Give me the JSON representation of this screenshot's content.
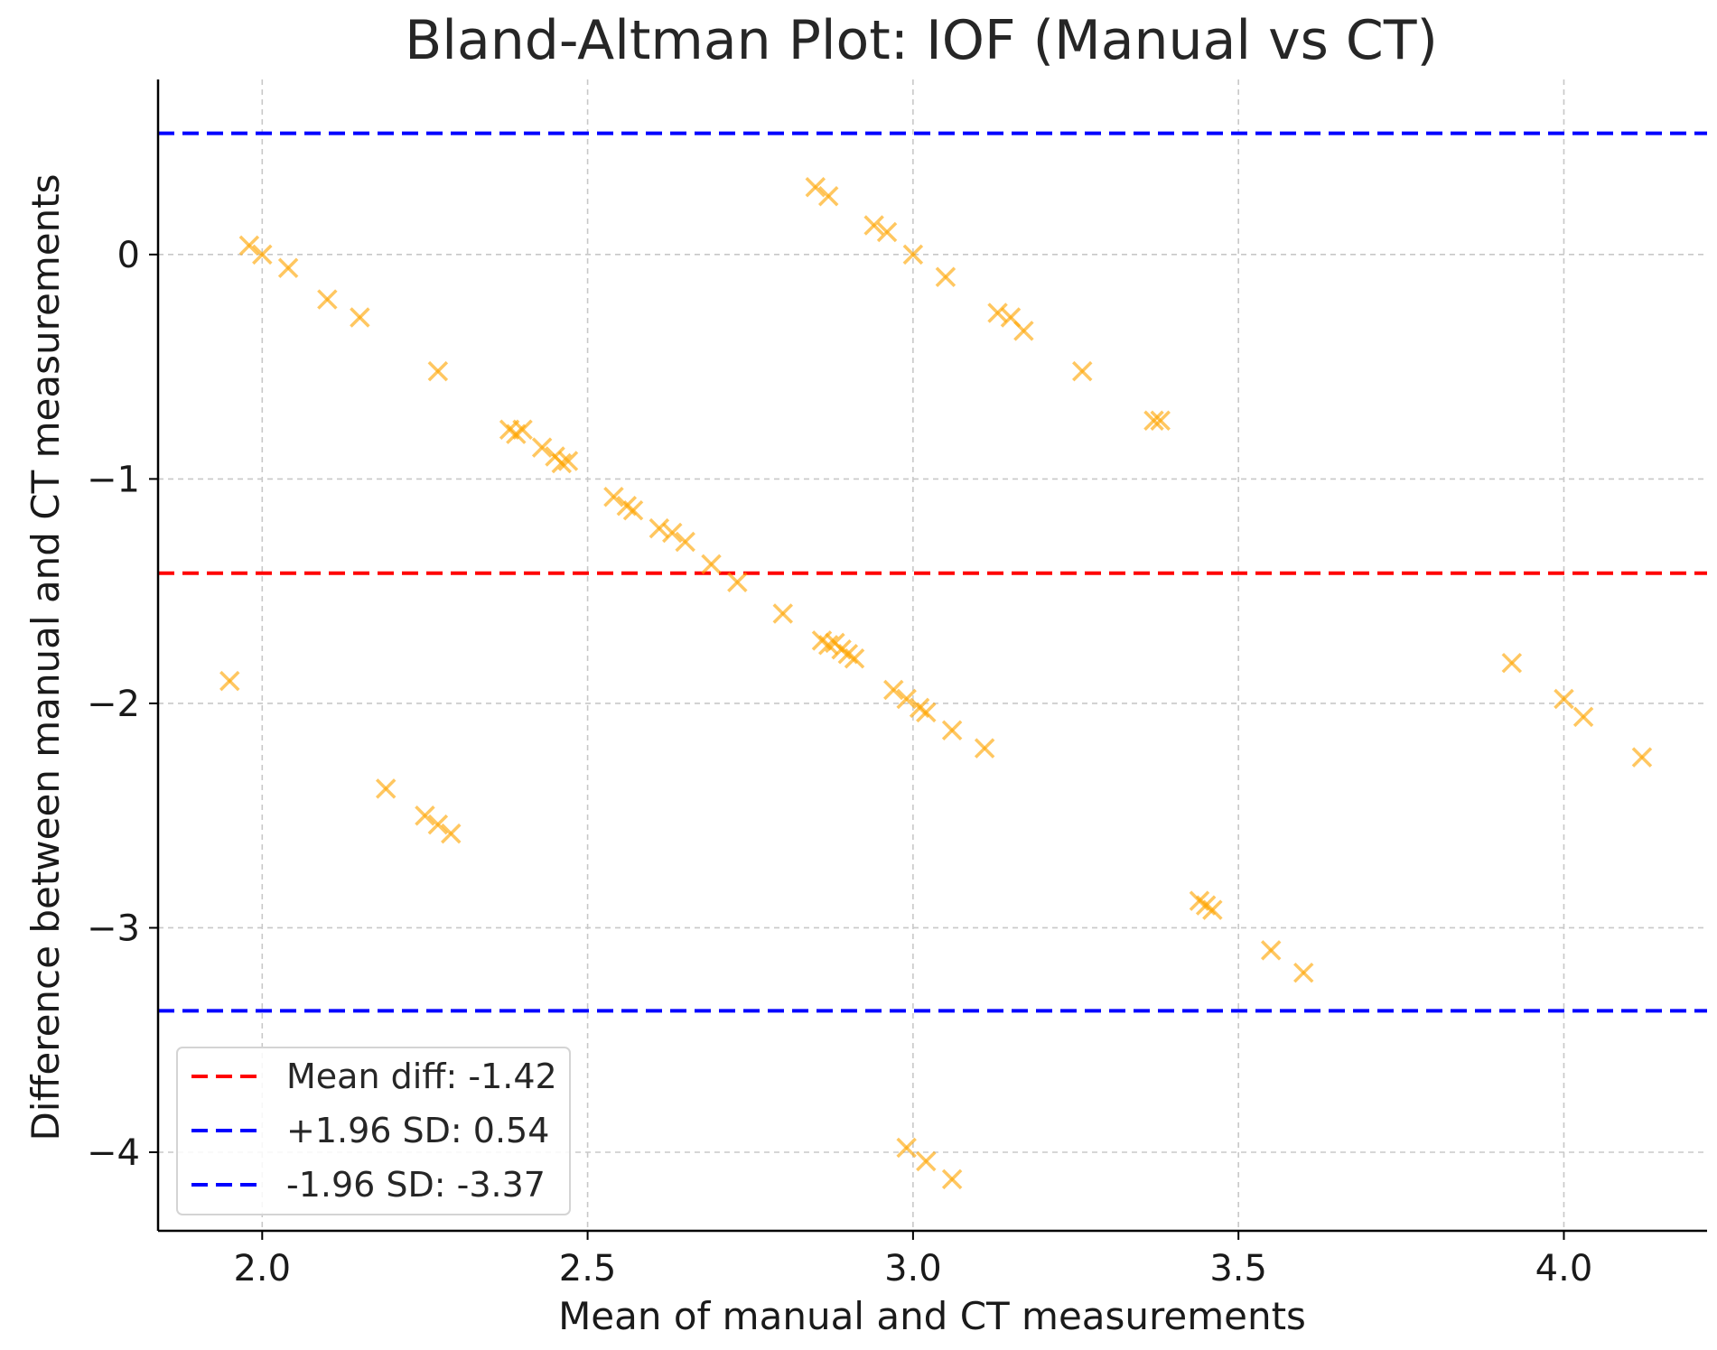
{
  "chart_data": {
    "type": "scatter",
    "title": "Bland-Altman Plot: IOF (Manual vs CT)",
    "xlabel": "Mean of manual and CT measurements",
    "ylabel": "Difference between manual and CT measurements",
    "xlim": [
      1.84,
      4.22
    ],
    "ylim": [
      -4.35,
      0.78
    ],
    "xticks": [
      2.0,
      2.5,
      3.0,
      3.5,
      4.0
    ],
    "xtick_labels": [
      "2.0",
      "2.5",
      "3.0",
      "3.5",
      "4.0"
    ],
    "yticks": [
      0,
      -1,
      -2,
      -3,
      -4
    ],
    "ytick_labels": [
      "0",
      "−1",
      "−2",
      "−3",
      "−4"
    ],
    "grid": true,
    "marker": "x",
    "marker_color": "#FFA500",
    "points": [
      [
        1.98,
        0.04
      ],
      [
        2.0,
        0.0
      ],
      [
        2.04,
        -0.06
      ],
      [
        2.1,
        -0.2
      ],
      [
        2.15,
        -0.28
      ],
      [
        2.27,
        -0.52
      ],
      [
        2.38,
        -0.78
      ],
      [
        2.39,
        -0.8
      ],
      [
        2.4,
        -0.78
      ],
      [
        2.43,
        -0.86
      ],
      [
        2.45,
        -0.9
      ],
      [
        2.46,
        -0.93
      ],
      [
        2.47,
        -0.92
      ],
      [
        2.54,
        -1.08
      ],
      [
        2.56,
        -1.12
      ],
      [
        2.57,
        -1.14
      ],
      [
        2.61,
        -1.22
      ],
      [
        2.63,
        -1.24
      ],
      [
        2.65,
        -1.28
      ],
      [
        2.69,
        -1.38
      ],
      [
        2.73,
        -1.46
      ],
      [
        2.8,
        -1.6
      ],
      [
        2.86,
        -1.72
      ],
      [
        2.87,
        -1.74
      ],
      [
        2.88,
        -1.73
      ],
      [
        2.89,
        -1.76
      ],
      [
        2.9,
        -1.78
      ],
      [
        2.91,
        -1.8
      ],
      [
        2.97,
        -1.94
      ],
      [
        2.99,
        -1.98
      ],
      [
        3.01,
        -2.02
      ],
      [
        3.02,
        -2.04
      ],
      [
        3.06,
        -2.12
      ],
      [
        3.11,
        -2.2
      ],
      [
        2.85,
        0.3
      ],
      [
        2.87,
        0.26
      ],
      [
        2.94,
        0.13
      ],
      [
        2.96,
        0.1
      ],
      [
        3.0,
        0.0
      ],
      [
        3.05,
        -0.1
      ],
      [
        3.13,
        -0.26
      ],
      [
        3.15,
        -0.28
      ],
      [
        3.17,
        -0.34
      ],
      [
        3.26,
        -0.52
      ],
      [
        3.37,
        -0.74
      ],
      [
        3.38,
        -0.74
      ],
      [
        1.95,
        -1.9
      ],
      [
        2.19,
        -2.38
      ],
      [
        2.25,
        -2.5
      ],
      [
        2.27,
        -2.54
      ],
      [
        2.29,
        -2.58
      ],
      [
        3.44,
        -2.88
      ],
      [
        3.45,
        -2.9
      ],
      [
        3.46,
        -2.92
      ],
      [
        3.55,
        -3.1
      ],
      [
        3.6,
        -3.2
      ],
      [
        3.92,
        -1.82
      ],
      [
        4.0,
        -1.98
      ],
      [
        4.03,
        -2.06
      ],
      [
        4.12,
        -2.24
      ],
      [
        2.99,
        -3.98
      ],
      [
        3.02,
        -4.04
      ],
      [
        3.06,
        -4.12
      ]
    ],
    "reference_lines": [
      {
        "label": "Mean diff: -1.42",
        "value": -1.42,
        "color": "#FF0000"
      },
      {
        "label": "+1.96 SD: 0.54",
        "value": 0.54,
        "color": "#0000FF"
      },
      {
        "label": "-1.96 SD: -3.37",
        "value": -3.37,
        "color": "#0000FF"
      }
    ],
    "legend_position": "lower-left"
  }
}
